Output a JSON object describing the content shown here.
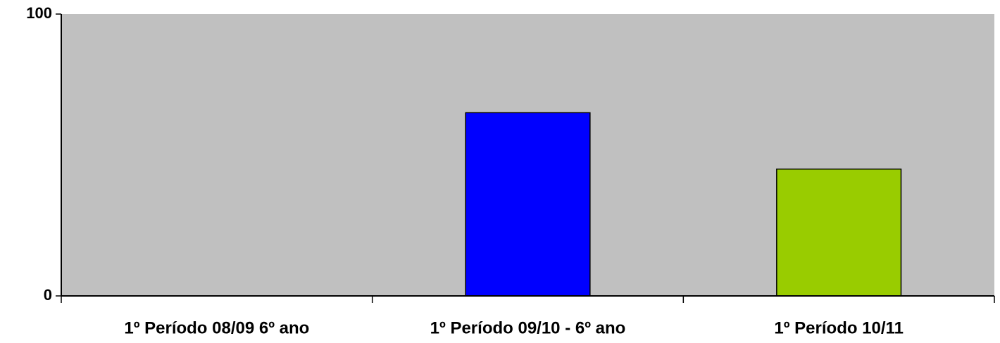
{
  "chart_data": {
    "type": "bar",
    "categories": [
      "1º Período 08/09 6º ano",
      "1º Período 09/10 - 6º ano",
      "1º Período 10/11"
    ],
    "values": [
      0,
      65,
      45
    ],
    "colors": [
      "#9999ff",
      "#0000ff",
      "#99cc00"
    ],
    "ylim": [
      0,
      100
    ],
    "yticks": [
      0,
      100
    ],
    "grid": false
  }
}
